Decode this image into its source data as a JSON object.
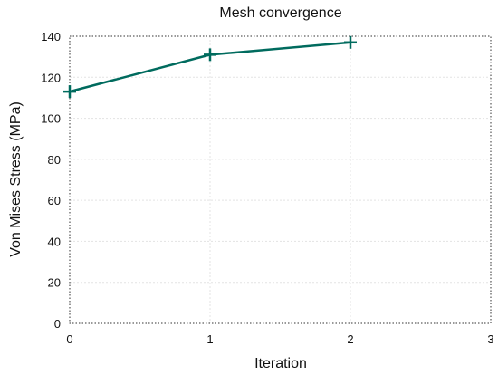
{
  "chart_data": {
    "type": "line",
    "title": "Mesh convergence",
    "xlabel": "Iteration",
    "ylabel": "Von Mises Stress (MPa)",
    "xlim": [
      0,
      3
    ],
    "ylim": [
      0,
      140
    ],
    "xticks": [
      0,
      1,
      2,
      3
    ],
    "yticks": [
      0,
      20,
      40,
      60,
      80,
      100,
      120,
      140
    ],
    "grid": true,
    "series": [
      {
        "x": [
          0,
          1,
          2
        ],
        "y": [
          113,
          131,
          137
        ],
        "color": "#006b5e",
        "marker": "plus"
      }
    ]
  }
}
